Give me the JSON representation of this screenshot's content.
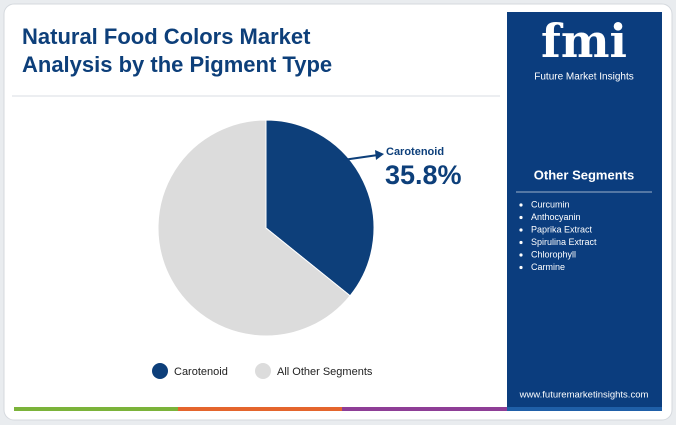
{
  "chart_data": {
    "type": "pie",
    "title": "Natural Food Colors Market Analysis by the Pigment Type",
    "categories": [
      "Carotenoid",
      "All Other Segments"
    ],
    "values": [
      35.8,
      64.2
    ],
    "value_labels": [
      "35.8%",
      null
    ],
    "colors": [
      "#0d3f7a",
      "#dcdcdc"
    ],
    "legend": "bottom"
  },
  "logo": {
    "text": "fmi",
    "subtitle": "Future Market Insights"
  },
  "sidebar": {
    "title": "Other Segments",
    "items": [
      "Curcumin",
      "Anthocyanin",
      "Paprika Extract",
      "Spirulina Extract",
      "Chlorophyll",
      "Carmine"
    ]
  },
  "footer": {
    "url": "www.futuremarketinsights.com"
  }
}
